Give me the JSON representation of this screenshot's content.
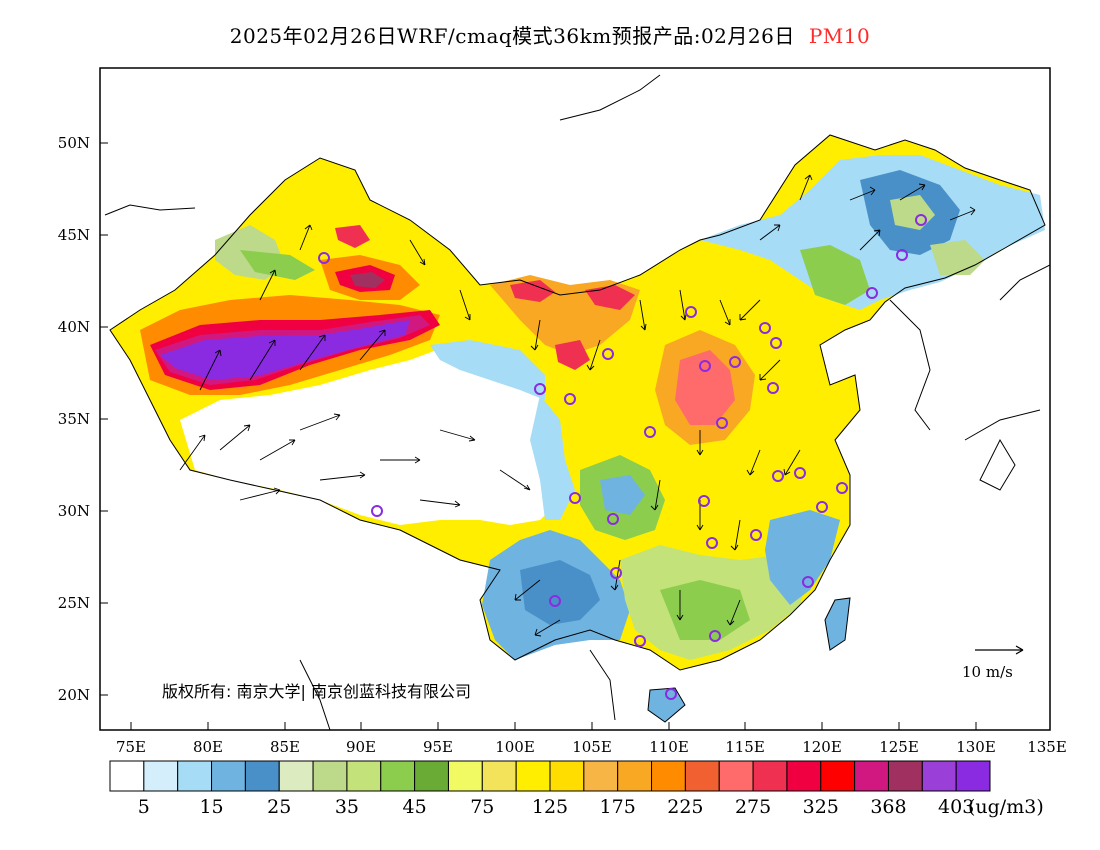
{
  "title": {
    "main": "2025年02月26日WRF/cmaq模式36km预报产品:02月26日",
    "variable": "PM10"
  },
  "map": {
    "lat_labels": [
      "50N",
      "45N",
      "40N",
      "35N",
      "30N",
      "25N",
      "20N"
    ],
    "lon_labels": [
      "75E",
      "80E",
      "85E",
      "90E",
      "95E",
      "100E",
      "105E",
      "110E",
      "115E",
      "120E",
      "125E",
      "130E",
      "135E"
    ],
    "copyright": "版权所有: 南京大学| 南京创蓝科技有限公司",
    "wind_reference": "10 m/s",
    "city_marker_color": "#8a2be2"
  },
  "colorbar": {
    "colors": [
      "#ffffff",
      "#d4effb",
      "#a6dcf5",
      "#6fb3e0",
      "#4a90c8",
      "#dcebc0",
      "#bdd98a",
      "#c3e27a",
      "#8ccd4e",
      "#6aab35",
      "#f1fa62",
      "#f3e35a",
      "#ffee00",
      "#ffdd00",
      "#f7b546",
      "#f9a823",
      "#ff8c00",
      "#f06030",
      "#ff6a6a",
      "#f03050",
      "#f00040",
      "#ff0000",
      "#d01880",
      "#a03060",
      "#9a40d8",
      "#8a2be2"
    ],
    "labels": [
      "5",
      "15",
      "25",
      "35",
      "45",
      "75",
      "125",
      "175",
      "225",
      "275",
      "325",
      "368",
      "403"
    ],
    "unit": "(ug/m3)"
  }
}
